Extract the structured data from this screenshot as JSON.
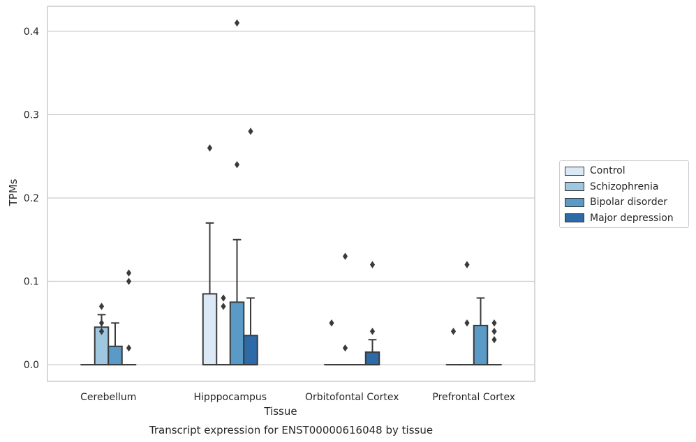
{
  "chart_data": {
    "type": "box",
    "title": "",
    "caption": "Transcript expression for ENST00000616048 by tissue",
    "xlabel": "Tissue",
    "ylabel": "TPMs",
    "ylim": [
      -0.02,
      0.43
    ],
    "yticks": [
      0.0,
      0.1,
      0.2,
      0.3,
      0.4
    ],
    "ytick_labels": [
      "0.0",
      "0.1",
      "0.2",
      "0.3",
      "0.4"
    ],
    "grid": true,
    "legend_position": "right",
    "categories": [
      "Cerebellum",
      "Hipppocampus",
      "Orbitofontal Cortex",
      "Prefrontal Cortex"
    ],
    "series": [
      {
        "name": "Control",
        "color": "#dbe8f5",
        "boxes": [
          {
            "q1": 0,
            "median": 0,
            "q3": 0,
            "whisker_low": 0,
            "whisker_high": 0,
            "outliers": []
          },
          {
            "q1": 0,
            "median": 0,
            "q3": 0.085,
            "whisker_low": 0,
            "whisker_high": 0.17,
            "outliers": [
              0.26
            ]
          },
          {
            "q1": 0,
            "median": 0,
            "q3": 0,
            "whisker_low": 0,
            "whisker_high": 0,
            "outliers": [
              0.05
            ]
          },
          {
            "q1": 0,
            "median": 0,
            "q3": 0,
            "whisker_low": 0,
            "whisker_high": 0,
            "outliers": [
              0.04
            ]
          }
        ]
      },
      {
        "name": "Schizophrenia",
        "color": "#9fc7df",
        "boxes": [
          {
            "q1": 0,
            "median": 0,
            "q3": 0.045,
            "whisker_low": 0,
            "whisker_high": 0.06,
            "outliers": [
              0.04,
              0.05,
              0.07
            ]
          },
          {
            "q1": 0,
            "median": 0,
            "q3": 0,
            "whisker_low": 0,
            "whisker_high": 0,
            "outliers": [
              0.07,
              0.08
            ]
          },
          {
            "q1": 0,
            "median": 0,
            "q3": 0,
            "whisker_low": 0,
            "whisker_high": 0,
            "outliers": [
              0.02,
              0.13
            ]
          },
          {
            "q1": 0,
            "median": 0,
            "q3": 0,
            "whisker_low": 0,
            "whisker_high": 0,
            "outliers": [
              0.05,
              0.12
            ]
          }
        ]
      },
      {
        "name": "Bipolar disorder",
        "color": "#5a9ac6",
        "boxes": [
          {
            "q1": 0,
            "median": 0,
            "q3": 0.022,
            "whisker_low": 0,
            "whisker_high": 0.05,
            "outliers": []
          },
          {
            "q1": 0,
            "median": 0,
            "q3": 0.075,
            "whisker_low": 0,
            "whisker_high": 0.15,
            "outliers": [
              0.24,
              0.41
            ]
          },
          {
            "q1": 0,
            "median": 0,
            "q3": 0,
            "whisker_low": 0,
            "whisker_high": 0,
            "outliers": []
          },
          {
            "q1": 0,
            "median": 0,
            "q3": 0.047,
            "whisker_low": 0,
            "whisker_high": 0.08,
            "outliers": []
          }
        ]
      },
      {
        "name": "Major depression",
        "color": "#2d6aa8",
        "boxes": [
          {
            "q1": 0,
            "median": 0,
            "q3": 0,
            "whisker_low": 0,
            "whisker_high": 0,
            "outliers": [
              0.02,
              0.1,
              0.11
            ]
          },
          {
            "q1": 0,
            "median": 0,
            "q3": 0.035,
            "whisker_low": 0,
            "whisker_high": 0.08,
            "outliers": [
              0.28
            ]
          },
          {
            "q1": 0,
            "median": 0,
            "q3": 0.015,
            "whisker_low": 0,
            "whisker_high": 0.03,
            "outliers": [
              0.04,
              0.12
            ]
          },
          {
            "q1": 0,
            "median": 0,
            "q3": 0,
            "whisker_low": 0,
            "whisker_high": 0,
            "outliers": [
              0.03,
              0.04,
              0.05
            ]
          }
        ]
      }
    ]
  }
}
